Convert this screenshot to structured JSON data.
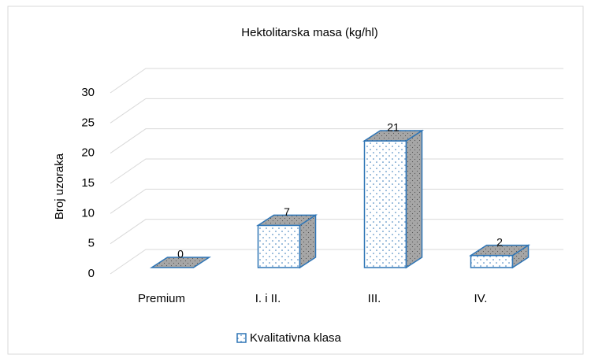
{
  "chart_data": {
    "type": "bar",
    "title": "Hektolitarska masa (kg/hl)",
    "y_label": "Broj uzoraka",
    "categories": [
      "Premium",
      "I. i II.",
      "III.",
      "IV."
    ],
    "series": [
      {
        "name": "Kvalitativna klasa",
        "color": "#2e75b6",
        "values": [
          0,
          7,
          21,
          2
        ]
      }
    ],
    "ylim": [
      0,
      30
    ],
    "yticks": [
      0,
      5,
      10,
      15,
      20,
      25,
      30
    ],
    "grid": true,
    "legend": "bottom"
  }
}
